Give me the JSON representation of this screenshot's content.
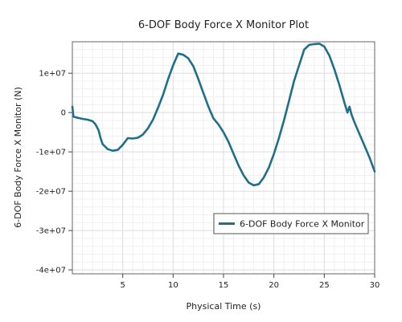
{
  "chart_data": {
    "type": "line",
    "title": "6-DOF Body Force X Monitor Plot",
    "xlabel": "Physical Time (s)",
    "ylabel": "6-DOF Body Force X Monitor (N)",
    "xlim": [
      0,
      30
    ],
    "ylim": [
      -41000000,
      18000000
    ],
    "x_ticks": [
      5,
      10,
      15,
      20,
      25,
      30
    ],
    "x_tick_labels": [
      "5",
      "10",
      "15",
      "20",
      "25",
      "30"
    ],
    "y_ticks": [
      10000000,
      0,
      -10000000,
      -20000000,
      -30000000,
      -40000000
    ],
    "y_tick_labels": [
      "1e+07",
      "0",
      "-1e+07",
      "-2e+07",
      "-3e+07",
      "-4e+07"
    ],
    "grid": true,
    "legend_position": "bottom-right",
    "series": [
      {
        "name": "6-DOF Body Force X Monitor",
        "color": "#1f6f8b",
        "x": [
          0,
          0.1,
          0.3,
          1.0,
          1.5,
          2.0,
          2.3,
          2.6,
          2.8,
          3.0,
          3.5,
          4.0,
          4.5,
          5.0,
          5.5,
          6.0,
          6.5,
          7.0,
          7.5,
          8.0,
          8.5,
          9.0,
          9.5,
          10.0,
          10.5,
          11.0,
          11.5,
          12.0,
          12.5,
          13.0,
          13.5,
          14.0,
          14.5,
          15.0,
          15.5,
          16.0,
          16.5,
          17.0,
          17.5,
          18.0,
          18.5,
          19.0,
          19.5,
          20.0,
          20.5,
          21.0,
          21.5,
          22.0,
          22.5,
          23.0,
          23.5,
          24.0,
          24.5,
          25.0,
          25.5,
          26.0,
          26.5,
          27.0,
          27.3,
          27.5,
          27.7,
          28.0,
          28.5,
          29.0,
          29.5,
          30.0
        ],
        "y": [
          1500000,
          -1000000,
          -1200000,
          -1600000,
          -1800000,
          -2200000,
          -3000000,
          -4500000,
          -6500000,
          -8000000,
          -9300000,
          -9700000,
          -9500000,
          -8200000,
          -6500000,
          -6600000,
          -6400000,
          -5600000,
          -4000000,
          -1800000,
          1200000,
          4500000,
          8500000,
          12000000,
          15000000,
          14700000,
          13800000,
          11800000,
          8500000,
          5000000,
          1500000,
          -1500000,
          -3000000,
          -5000000,
          -7500000,
          -10500000,
          -13500000,
          -16000000,
          -17800000,
          -18500000,
          -18200000,
          -16500000,
          -14000000,
          -10500000,
          -6500000,
          -2000000,
          3000000,
          8000000,
          12000000,
          16000000,
          17200000,
          17400000,
          17500000,
          16800000,
          14500000,
          11000000,
          7000000,
          2500000,
          0,
          1500000,
          -500000,
          -2500000,
          -5500000,
          -8500000,
          -11500000,
          -15000000
        ]
      }
    ]
  }
}
